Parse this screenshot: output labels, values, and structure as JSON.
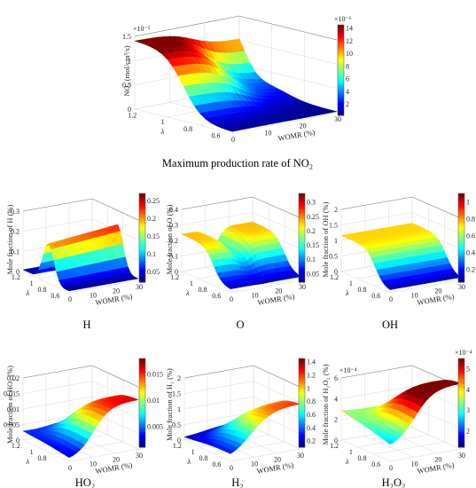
{
  "chart_data": [
    {
      "type": "surface",
      "title": "Maximum production rate of NO₂",
      "zlabel": "NO₂ (mol/cm³/s)",
      "xlabel": "WOMR (%)",
      "ylabel": "λ",
      "exponent": "×10⁻⁵",
      "colorbar_exponent": "×10⁻⁶",
      "xticks": [
        "0",
        "10",
        "20",
        "30"
      ],
      "yticks": [
        "0.6",
        "0.8",
        "1",
        "1.2"
      ],
      "zticks": [
        "0",
        "0.5",
        "1",
        "1.5"
      ],
      "colorbar_ticks": [
        "2",
        "4",
        "6",
        "8",
        "10",
        "12",
        "14"
      ],
      "colorbar_range": [
        0.2,
        14.5
      ],
      "xrange": [
        0,
        30
      ],
      "yrange": [
        0.6,
        1.3
      ],
      "zrange": [
        0,
        1.5e-05
      ],
      "surface_values": {
        "lambda": [
          0.6,
          0.8,
          1.0,
          1.2,
          1.3
        ],
        "womr_zero": [
          2e-07,
          3e-06,
          9.5e-06,
          1.35e-05,
          1.4e-05
        ],
        "womr_30": [
          2e-07,
          2e-07,
          2e-06,
          1.2e-05,
          1.5e-05
        ]
      }
    },
    {
      "type": "surface",
      "title": "H",
      "zlabel": "Mole fraction of H (%)",
      "xlabel": "WOMR (%)",
      "ylabel": "λ",
      "xticks": [
        "0",
        "10",
        "20",
        "30"
      ],
      "yticks": [
        "0.6",
        "0.8",
        "1",
        "1.2"
      ],
      "zticks": [
        "0",
        "0.1",
        "0.2",
        "0.3"
      ],
      "colorbar_ticks": [
        "0.05",
        "0.1",
        "0.15",
        "0.2",
        "0.25"
      ],
      "colorbar_range": [
        0.02,
        0.27
      ],
      "zrange": [
        0,
        0.3
      ]
    },
    {
      "type": "surface",
      "title": "O",
      "zlabel": "Mole fraction of O (%)",
      "xlabel": "WOMR (%)",
      "ylabel": "λ",
      "xticks": [
        "0",
        "10",
        "20",
        "30"
      ],
      "yticks": [
        "0.6",
        "0.8",
        "1",
        "1.2"
      ],
      "zticks": [
        "0",
        "0.1",
        "0.2",
        "0.3",
        "0.4"
      ],
      "colorbar_ticks": [
        "0.05",
        "0.1",
        "0.15",
        "0.2",
        "0.25",
        "0.3"
      ],
      "colorbar_range": [
        0.02,
        0.33
      ],
      "zrange": [
        0,
        0.4
      ]
    },
    {
      "type": "surface",
      "title": "OH",
      "zlabel": "Mole fraction of OH (%)",
      "xlabel": "WOMR (%)",
      "ylabel": "λ",
      "xticks": [
        "0",
        "10",
        "20",
        "30"
      ],
      "yticks": [
        "0.6",
        "0.8",
        "1",
        "1.2"
      ],
      "zticks": [
        "0",
        "0.5",
        "1",
        "1.5",
        "2"
      ],
      "colorbar_ticks": [
        "0.2",
        "0.4",
        "0.6",
        "0.8",
        "1"
      ],
      "colorbar_range": [
        0.05,
        1.1
      ],
      "zrange": [
        0,
        2
      ]
    },
    {
      "type": "surface",
      "title": "HO₂",
      "zlabel": "Mole fraction of HO₂ (%)",
      "xlabel": "WOMR (%)",
      "ylabel": "λ",
      "xticks": [
        "0",
        "10",
        "20",
        "30"
      ],
      "yticks": [
        "0.8",
        "1",
        "1.2"
      ],
      "zticks": [
        "0",
        "0.005",
        "0.01",
        "0.015",
        "0.02"
      ],
      "colorbar_ticks": [
        "0.005",
        "0.01",
        "0.015"
      ],
      "colorbar_range": [
        0.001,
        0.018
      ],
      "zrange": [
        0,
        0.02
      ]
    },
    {
      "type": "surface",
      "title": "H₂",
      "zlabel": "Mole fraction of H₂ (%)",
      "xlabel": "WOMR (%)",
      "ylabel": "λ",
      "xticks": [
        "0",
        "10",
        "20",
        "30"
      ],
      "yticks": [
        "0.6",
        "0.8",
        "1",
        "1.2"
      ],
      "zticks": [
        "0",
        "0.5",
        "1",
        "1.5",
        "2"
      ],
      "colorbar_ticks": [
        "0.2",
        "0.4",
        "0.6",
        "0.8",
        "1",
        "1.2",
        "1.4"
      ],
      "colorbar_range": [
        0.1,
        1.45
      ],
      "zrange": [
        0,
        2
      ]
    },
    {
      "type": "surface",
      "title": "H₂O₂",
      "zlabel": "Mole fraction of H₂O₂ (%)",
      "xlabel": "WOMR (%)",
      "ylabel": "λ",
      "exponent": "×10⁻⁴",
      "colorbar_exponent": "×10⁻⁴",
      "xticks": [
        "0",
        "10",
        "20",
        "30"
      ],
      "yticks": [
        "0.6",
        "0.8",
        "1",
        "1.2"
      ],
      "zticks": [
        "0",
        "2",
        "4",
        "6"
      ],
      "colorbar_ticks": [
        "2",
        "3",
        "4",
        "5"
      ],
      "colorbar_range": [
        1.2,
        5.5
      ],
      "zrange": [
        0,
        0.0006
      ]
    }
  ]
}
